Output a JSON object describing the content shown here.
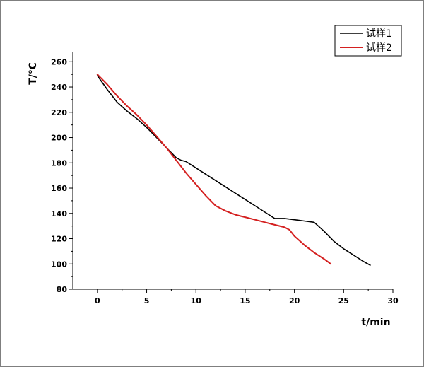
{
  "chart_data": {
    "type": "line",
    "xlabel": "t/min",
    "ylabel": "T/℃",
    "xlim": [
      -2.5,
      30
    ],
    "ylim": [
      80,
      268
    ],
    "xticks": [
      0,
      5,
      10,
      15,
      20,
      25,
      30
    ],
    "yticks": [
      80,
      100,
      120,
      140,
      160,
      180,
      200,
      220,
      240,
      260
    ],
    "grid": false,
    "legend_position": "top-right",
    "series": [
      {
        "name": "试样1",
        "color": "#000000",
        "x": [
          0,
          1,
          2,
          3,
          4,
          5,
          6,
          7,
          8,
          8.5,
          9,
          10,
          11,
          12,
          13,
          14,
          15,
          16,
          17,
          18,
          19,
          20,
          21,
          22,
          23,
          24,
          25,
          26,
          27,
          27.7
        ],
        "y": [
          249,
          238,
          228,
          221,
          215,
          208,
          200,
          192,
          184,
          182,
          181,
          176,
          171,
          166,
          161,
          156,
          151,
          146,
          141,
          136,
          136,
          135,
          134,
          133,
          126,
          118,
          112,
          107,
          102,
          99
        ]
      },
      {
        "name": "试样2",
        "color": "#d42020",
        "x": [
          0,
          1,
          2,
          3,
          4,
          5,
          6,
          7,
          8,
          9,
          10,
          11,
          12,
          13,
          14,
          15,
          16,
          17,
          18,
          19,
          19.5,
          20,
          21,
          22,
          23,
          23.7
        ],
        "y": [
          250,
          242,
          233,
          225,
          218,
          210,
          201,
          192,
          182,
          172,
          163,
          154,
          146,
          142,
          139,
          137,
          135,
          133,
          131,
          129,
          127,
          122,
          115,
          109,
          104,
          100
        ]
      }
    ]
  }
}
